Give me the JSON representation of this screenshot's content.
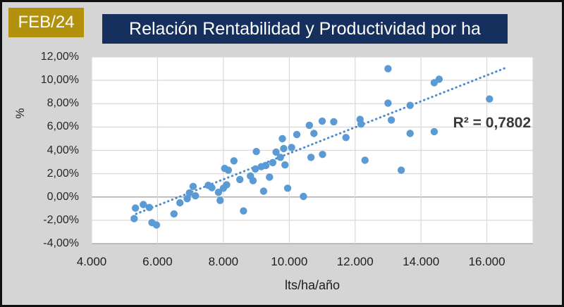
{
  "header": {
    "badge_label": "FEB/24",
    "title": "Relación Rentabilidad y Productividad por ha"
  },
  "chart_data": {
    "type": "scatter",
    "title": "Relación Rentabilidad y Productividad por ha",
    "xlabel": "lts/ha/año",
    "ylabel": "%",
    "grid": true,
    "legend": "none",
    "x_axis": {
      "min": 4000,
      "max": 17400,
      "tick_values": [
        4000,
        6000,
        8000,
        10000,
        12000,
        14000,
        16000
      ],
      "tick_labels": [
        "4.000",
        "6.000",
        "8.000",
        "10.000",
        "12.000",
        "14.000",
        "16.000"
      ]
    },
    "y_axis": {
      "min": -4,
      "max": 12,
      "unit": "percent",
      "tick_values": [
        12,
        10,
        8,
        6,
        4,
        2,
        0,
        -2,
        -4
      ],
      "tick_labels": [
        "12,00%",
        "10,00%",
        "8,00%",
        "6,00%",
        "4,00%",
        "2,00%",
        "0,00%",
        "-2,00%",
        "-4,00%"
      ]
    },
    "r_squared": {
      "label": "R² = 0,7802",
      "value": 0.7802
    },
    "trendline": {
      "type": "linear",
      "style": "dotted",
      "start": [
        5350,
        -1.45
      ],
      "end": [
        16550,
        11.05
      ]
    },
    "points": [
      [
        5290,
        -1.85
      ],
      [
        5330,
        -0.95
      ],
      [
        5570,
        -0.65
      ],
      [
        5750,
        -0.9
      ],
      [
        5830,
        -2.2
      ],
      [
        5970,
        -2.4
      ],
      [
        6500,
        -1.45
      ],
      [
        6680,
        -0.5
      ],
      [
        6900,
        -0.15
      ],
      [
        6970,
        0.35
      ],
      [
        7080,
        0.9
      ],
      [
        7150,
        0.1
      ],
      [
        7540,
        1.0
      ],
      [
        7650,
        0.8
      ],
      [
        7850,
        0.4
      ],
      [
        7900,
        -0.3
      ],
      [
        8000,
        0.75
      ],
      [
        8100,
        1.05
      ],
      [
        8040,
        2.45
      ],
      [
        8150,
        2.3
      ],
      [
        8320,
        3.1
      ],
      [
        8500,
        1.5
      ],
      [
        8610,
        -1.2
      ],
      [
        8820,
        1.8
      ],
      [
        8900,
        1.4
      ],
      [
        8970,
        2.4
      ],
      [
        9000,
        3.9
      ],
      [
        9150,
        2.6
      ],
      [
        9290,
        2.7
      ],
      [
        9220,
        0.5
      ],
      [
        9400,
        1.7
      ],
      [
        9500,
        2.95
      ],
      [
        9600,
        3.85
      ],
      [
        9730,
        3.4
      ],
      [
        9790,
        5.0
      ],
      [
        9830,
        4.15
      ],
      [
        9870,
        2.75
      ],
      [
        9950,
        0.75
      ],
      [
        10070,
        4.25
      ],
      [
        10230,
        5.35
      ],
      [
        10430,
        0.05
      ],
      [
        10610,
        6.15
      ],
      [
        10660,
        3.4
      ],
      [
        10750,
        5.45
      ],
      [
        11010,
        3.65
      ],
      [
        11000,
        6.5
      ],
      [
        11350,
        6.45
      ],
      [
        11720,
        5.1
      ],
      [
        12150,
        6.65
      ],
      [
        12180,
        6.25
      ],
      [
        12300,
        3.15
      ],
      [
        13000,
        11.0
      ],
      [
        13000,
        8.05
      ],
      [
        13100,
        6.6
      ],
      [
        13400,
        2.3
      ],
      [
        13670,
        7.85
      ],
      [
        13670,
        5.45
      ],
      [
        14400,
        9.8
      ],
      [
        14550,
        10.1
      ],
      [
        14400,
        5.6
      ],
      [
        16080,
        8.4
      ]
    ]
  },
  "colors": {
    "background": "#D5D5D5",
    "frame_border": "#101010",
    "badge_bg": "#B2910C",
    "badge_text": "#FFFFFF",
    "title_bg": "#16305E",
    "title_text": "#FFFFFF",
    "plot_bg": "#FFFFFF",
    "gridline": "#D9D9D9",
    "axis_line": "#ABABAB",
    "tick_text": "#262626",
    "point": "#5B9BD5",
    "trendline": "#4E8BCB",
    "r2_text": "#3A3A3A"
  }
}
